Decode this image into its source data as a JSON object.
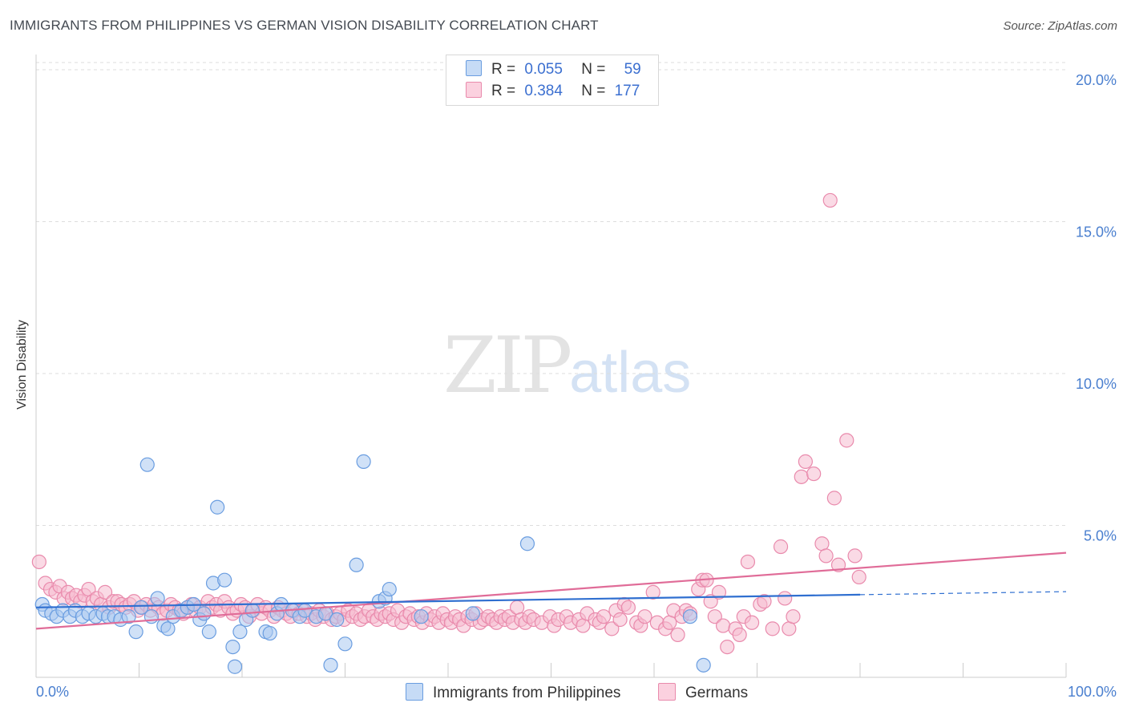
{
  "header": {
    "title": "IMMIGRANTS FROM PHILIPPINES VS GERMAN VISION DISABILITY CORRELATION CHART",
    "source": "Source: ZipAtlas.com"
  },
  "watermark": {
    "zip": "ZIP",
    "atlas": "atlas"
  },
  "legend": {
    "rows": [
      {
        "r_label": "R =",
        "r_value": "0.055",
        "n_label": "N =",
        "n_value": "59"
      },
      {
        "r_label": "R =",
        "r_value": "0.384",
        "n_label": "N =",
        "n_value": "177"
      }
    ]
  },
  "colors": {
    "blue_fill": "#aac8f0",
    "blue_stroke": "#6a9de0",
    "blue_line": "#2f6fd0",
    "pink_fill": "#f6bcd0",
    "pink_stroke": "#e98aac",
    "pink_line": "#e06c98",
    "grid": "#dddddd",
    "tick_text": "#4a7fcf"
  },
  "chart_data": {
    "type": "scatter",
    "title": "IMMIGRANTS FROM PHILIPPINES VS GERMAN VISION DISABILITY CORRELATION CHART",
    "xlabel": "",
    "ylabel": "Vision Disability",
    "xlim": [
      0,
      100
    ],
    "ylim": [
      0,
      20.5
    ],
    "x_tick_labels": [
      "0.0%",
      "100.0%"
    ],
    "y_ticks": [
      5,
      10,
      15,
      20
    ],
    "y_tick_labels": [
      "5.0%",
      "10.0%",
      "15.0%",
      "20.0%"
    ],
    "legend_position": "bottom",
    "series": [
      {
        "name": "Immigrants from Philippines",
        "r": 0.055,
        "n": 59,
        "trend": {
          "x_start": 0,
          "y_start": 2.3,
          "x_solid_end": 80,
          "y_solid_end": 2.72,
          "x_end": 100,
          "y_end": 2.82
        },
        "points": [
          [
            0.6,
            2.4
          ],
          [
            0.9,
            2.2
          ],
          [
            1.5,
            2.1
          ],
          [
            2.0,
            2.0
          ],
          [
            2.6,
            2.2
          ],
          [
            3.3,
            2.0
          ],
          [
            3.8,
            2.2
          ],
          [
            4.5,
            2.0
          ],
          [
            5.1,
            2.1
          ],
          [
            5.8,
            2.0
          ],
          [
            6.5,
            2.1
          ],
          [
            7.0,
            2.0
          ],
          [
            7.6,
            2.0
          ],
          [
            8.2,
            1.9
          ],
          [
            9.0,
            2.0
          ],
          [
            9.7,
            1.5
          ],
          [
            10.2,
            2.3
          ],
          [
            10.8,
            7.0
          ],
          [
            11.2,
            2.0
          ],
          [
            11.8,
            2.6
          ],
          [
            12.4,
            1.7
          ],
          [
            12.8,
            1.6
          ],
          [
            13.3,
            2.0
          ],
          [
            14.1,
            2.2
          ],
          [
            14.7,
            2.3
          ],
          [
            15.3,
            2.4
          ],
          [
            15.9,
            1.9
          ],
          [
            16.3,
            2.1
          ],
          [
            16.8,
            1.5
          ],
          [
            17.2,
            3.1
          ],
          [
            17.6,
            5.6
          ],
          [
            18.3,
            3.2
          ],
          [
            19.1,
            1.0
          ],
          [
            19.3,
            0.35
          ],
          [
            19.8,
            1.5
          ],
          [
            20.4,
            1.9
          ],
          [
            21.0,
            2.2
          ],
          [
            22.3,
            1.5
          ],
          [
            22.7,
            1.45
          ],
          [
            23.4,
            2.1
          ],
          [
            23.8,
            2.4
          ],
          [
            24.9,
            2.2
          ],
          [
            25.6,
            2.0
          ],
          [
            26.1,
            2.2
          ],
          [
            27.2,
            2.0
          ],
          [
            28.1,
            2.1
          ],
          [
            29.2,
            1.9
          ],
          [
            28.6,
            0.4
          ],
          [
            30.0,
            1.1
          ],
          [
            31.1,
            3.7
          ],
          [
            33.3,
            2.5
          ],
          [
            31.8,
            7.1
          ],
          [
            33.9,
            2.6
          ],
          [
            34.3,
            2.9
          ],
          [
            37.4,
            2.0
          ],
          [
            42.4,
            2.1
          ],
          [
            47.7,
            4.4
          ],
          [
            63.5,
            2.0
          ],
          [
            64.8,
            0.4
          ]
        ]
      },
      {
        "name": "Germans",
        "r": 0.384,
        "n": 177,
        "trend": {
          "x_start": 0,
          "y_start": 1.6,
          "x_end": 100,
          "y_end": 4.1
        },
        "points": [
          [
            0.3,
            3.8
          ],
          [
            0.9,
            3.1
          ],
          [
            1.4,
            2.9
          ],
          [
            1.9,
            2.8
          ],
          [
            2.3,
            3.0
          ],
          [
            2.7,
            2.6
          ],
          [
            3.1,
            2.8
          ],
          [
            3.5,
            2.6
          ],
          [
            3.9,
            2.7
          ],
          [
            4.3,
            2.5
          ],
          [
            4.7,
            2.7
          ],
          [
            5.1,
            2.9
          ],
          [
            5.5,
            2.5
          ],
          [
            5.9,
            2.6
          ],
          [
            6.3,
            2.4
          ],
          [
            6.7,
            2.8
          ],
          [
            7.1,
            2.3
          ],
          [
            7.5,
            2.5
          ],
          [
            7.9,
            2.5
          ],
          [
            8.3,
            2.4
          ],
          [
            8.7,
            2.3
          ],
          [
            9.1,
            2.4
          ],
          [
            9.5,
            2.5
          ],
          [
            9.9,
            2.2
          ],
          [
            10.3,
            2.3
          ],
          [
            10.7,
            2.4
          ],
          [
            11.1,
            2.2
          ],
          [
            11.5,
            2.4
          ],
          [
            11.9,
            2.3
          ],
          [
            12.3,
            2.1
          ],
          [
            12.7,
            2.2
          ],
          [
            13.1,
            2.4
          ],
          [
            13.5,
            2.3
          ],
          [
            13.9,
            2.2
          ],
          [
            14.3,
            2.1
          ],
          [
            14.7,
            2.3
          ],
          [
            15.1,
            2.4
          ],
          [
            15.5,
            2.2
          ],
          [
            15.9,
            2.3
          ],
          [
            16.3,
            2.1
          ],
          [
            16.7,
            2.5
          ],
          [
            17.1,
            2.3
          ],
          [
            17.5,
            2.4
          ],
          [
            17.9,
            2.2
          ],
          [
            18.3,
            2.5
          ],
          [
            18.7,
            2.3
          ],
          [
            19.1,
            2.1
          ],
          [
            19.5,
            2.2
          ],
          [
            19.9,
            2.4
          ],
          [
            20.3,
            2.3
          ],
          [
            20.7,
            2.0
          ],
          [
            21.1,
            2.2
          ],
          [
            21.5,
            2.4
          ],
          [
            21.9,
            2.1
          ],
          [
            22.3,
            2.3
          ],
          [
            22.7,
            2.2
          ],
          [
            23.1,
            2.0
          ],
          [
            23.5,
            2.3
          ],
          [
            23.9,
            2.2
          ],
          [
            24.3,
            2.1
          ],
          [
            24.7,
            2.0
          ],
          [
            25.1,
            2.2
          ],
          [
            25.5,
            2.1
          ],
          [
            25.9,
            2.2
          ],
          [
            26.3,
            2.0
          ],
          [
            26.7,
            2.1
          ],
          [
            27.1,
            1.9
          ],
          [
            27.5,
            2.2
          ],
          [
            27.9,
            2.0
          ],
          [
            28.3,
            2.1
          ],
          [
            28.7,
            1.9
          ],
          [
            29.1,
            2.0
          ],
          [
            29.5,
            2.1
          ],
          [
            29.9,
            1.9
          ],
          [
            30.3,
            2.2
          ],
          [
            30.7,
            2.0
          ],
          [
            31.1,
            2.1
          ],
          [
            31.5,
            1.9
          ],
          [
            31.9,
            2.0
          ],
          [
            32.3,
            2.2
          ],
          [
            32.7,
            2.0
          ],
          [
            33.1,
            1.9
          ],
          [
            33.5,
            2.1
          ],
          [
            33.9,
            2.0
          ],
          [
            34.3,
            2.1
          ],
          [
            34.7,
            1.9
          ],
          [
            35.1,
            2.2
          ],
          [
            35.5,
            1.8
          ],
          [
            35.9,
            2.0
          ],
          [
            36.3,
            2.1
          ],
          [
            36.7,
            1.9
          ],
          [
            37.1,
            2.0
          ],
          [
            37.5,
            1.8
          ],
          [
            37.9,
            2.1
          ],
          [
            38.3,
            1.9
          ],
          [
            38.7,
            2.0
          ],
          [
            39.1,
            1.8
          ],
          [
            39.5,
            2.1
          ],
          [
            39.9,
            1.9
          ],
          [
            40.3,
            1.8
          ],
          [
            40.7,
            2.0
          ],
          [
            41.1,
            1.9
          ],
          [
            41.5,
            1.7
          ],
          [
            41.9,
            2.0
          ],
          [
            42.3,
            1.9
          ],
          [
            42.7,
            2.1
          ],
          [
            43.1,
            1.8
          ],
          [
            43.5,
            1.9
          ],
          [
            43.9,
            2.0
          ],
          [
            44.3,
            1.9
          ],
          [
            44.7,
            1.8
          ],
          [
            45.1,
            2.0
          ],
          [
            45.5,
            1.9
          ],
          [
            45.9,
            2.0
          ],
          [
            46.3,
            1.8
          ],
          [
            46.7,
            2.3
          ],
          [
            47.1,
            1.9
          ],
          [
            47.5,
            1.8
          ],
          [
            47.9,
            2.0
          ],
          [
            48.3,
            1.9
          ],
          [
            49.1,
            1.8
          ],
          [
            49.9,
            2.0
          ],
          [
            50.3,
            1.7
          ],
          [
            50.7,
            1.9
          ],
          [
            51.5,
            2.0
          ],
          [
            51.9,
            1.8
          ],
          [
            52.7,
            1.9
          ],
          [
            53.1,
            1.7
          ],
          [
            53.5,
            2.1
          ],
          [
            54.3,
            1.9
          ],
          [
            54.7,
            1.8
          ],
          [
            55.1,
            2.0
          ],
          [
            55.9,
            1.6
          ],
          [
            56.3,
            2.2
          ],
          [
            56.7,
            1.9
          ],
          [
            57.1,
            2.4
          ],
          [
            57.5,
            2.3
          ],
          [
            58.3,
            1.8
          ],
          [
            58.7,
            1.7
          ],
          [
            59.1,
            2.0
          ],
          [
            59.9,
            2.8
          ],
          [
            60.3,
            1.8
          ],
          [
            61.1,
            1.6
          ],
          [
            61.5,
            1.8
          ],
          [
            61.9,
            2.2
          ],
          [
            62.3,
            1.4
          ],
          [
            62.7,
            2.0
          ],
          [
            63.1,
            2.2
          ],
          [
            63.5,
            2.1
          ],
          [
            64.3,
            2.9
          ],
          [
            64.7,
            3.2
          ],
          [
            65.1,
            3.2
          ],
          [
            65.5,
            2.5
          ],
          [
            65.9,
            2.0
          ],
          [
            66.3,
            2.8
          ],
          [
            66.7,
            1.7
          ],
          [
            67.1,
            1.0
          ],
          [
            67.9,
            1.6
          ],
          [
            68.3,
            1.4
          ],
          [
            68.7,
            2.0
          ],
          [
            69.1,
            3.8
          ],
          [
            69.5,
            1.8
          ],
          [
            70.3,
            2.4
          ],
          [
            70.7,
            2.5
          ],
          [
            71.5,
            1.6
          ],
          [
            72.3,
            4.3
          ],
          [
            72.7,
            2.6
          ],
          [
            73.1,
            1.6
          ],
          [
            73.5,
            2.0
          ],
          [
            74.3,
            6.6
          ],
          [
            74.7,
            7.1
          ],
          [
            75.5,
            6.7
          ],
          [
            76.3,
            4.4
          ],
          [
            76.7,
            4.0
          ],
          [
            77.1,
            15.7
          ],
          [
            77.5,
            5.9
          ],
          [
            77.9,
            3.7
          ],
          [
            78.7,
            7.8
          ],
          [
            79.5,
            4.0
          ],
          [
            79.9,
            3.3
          ]
        ]
      }
    ]
  },
  "bottom_legend": {
    "items": [
      {
        "label": "Immigrants from Philippines"
      },
      {
        "label": "Germans"
      }
    ]
  }
}
